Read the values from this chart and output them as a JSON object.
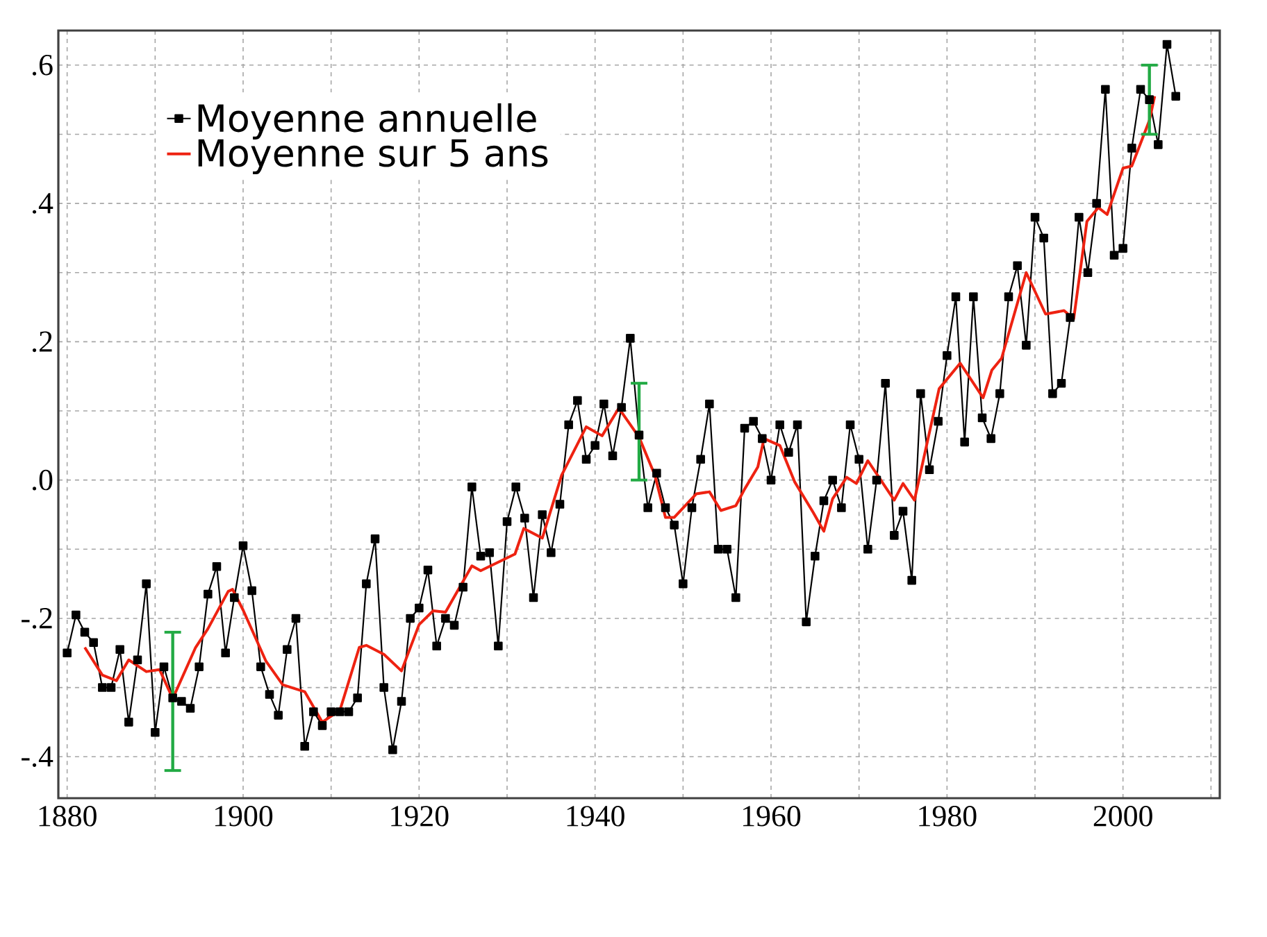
{
  "chart_data": {
    "type": "line",
    "xlim": [
      1879,
      2011
    ],
    "ylim": [
      -0.46,
      0.65
    ],
    "xticks": [
      1880,
      {
        "value": 1890,
        "label": null
      },
      1900,
      {
        "value": 1910,
        "label": null
      },
      1920,
      {
        "value": 1930,
        "label": null
      },
      1940,
      {
        "value": 1950,
        "label": null
      },
      1960,
      {
        "value": 1970,
        "label": null
      },
      1980,
      {
        "value": 1990,
        "label": null
      },
      2000,
      {
        "value": 2010,
        "label": null
      }
    ],
    "yticks": [
      {
        "value": -0.4,
        "label": "-.4"
      },
      {
        "value": -0.3,
        "label": null
      },
      {
        "value": -0.2,
        "label": "-.2"
      },
      {
        "value": -0.1,
        "label": null
      },
      {
        "value": 0,
        "label": ".0"
      },
      {
        "value": 0.1,
        "label": null
      },
      {
        "value": 0.2,
        "label": ".2"
      },
      {
        "value": 0.3,
        "label": null
      },
      {
        "value": 0.4,
        "label": ".4"
      },
      {
        "value": 0.5,
        "label": null
      },
      {
        "value": 0.6,
        "label": ".6"
      }
    ],
    "grid": true,
    "legend": "top left",
    "series": [
      {
        "name": "Moyenne annuelle",
        "color": "#000000",
        "marker": "square",
        "x": [
          1880,
          1881,
          1882,
          1883,
          1884,
          1885,
          1886,
          1887,
          1888,
          1889,
          1890,
          1891,
          1892,
          1893,
          1894,
          1895,
          1896,
          1897,
          1898,
          1899,
          1900,
          1901,
          1902,
          1903,
          1904,
          1905,
          1906,
          1907,
          1908,
          1909,
          1910,
          1911,
          1912,
          1913,
          1914,
          1915,
          1916,
          1917,
          1918,
          1919,
          1920,
          1921,
          1922,
          1923,
          1924,
          1925,
          1926,
          1927,
          1928,
          1929,
          1930,
          1931,
          1932,
          1933,
          1934,
          1935,
          1936,
          1937,
          1938,
          1939,
          1940,
          1941,
          1942,
          1943,
          1944,
          1945,
          1946,
          1947,
          1948,
          1949,
          1950,
          1951,
          1952,
          1953,
          1954,
          1955,
          1956,
          1957,
          1958,
          1959,
          1960,
          1961,
          1962,
          1963,
          1964,
          1965,
          1966,
          1967,
          1968,
          1969,
          1970,
          1971,
          1972,
          1973,
          1974,
          1975,
          1976,
          1977,
          1978,
          1979,
          1980,
          1981,
          1982,
          1983,
          1984,
          1985,
          1986,
          1987,
          1988,
          1989,
          1990,
          1991,
          1992,
          1993,
          1994,
          1995,
          1996,
          1997,
          1998,
          1999,
          2000,
          2001,
          2002,
          2003,
          2004,
          2005,
          2006
        ],
        "values": [
          -0.25,
          -0.195,
          -0.22,
          -0.235,
          -0.3,
          -0.3,
          -0.245,
          -0.35,
          -0.26,
          -0.15,
          -0.365,
          -0.27,
          -0.315,
          -0.32,
          -0.33,
          -0.27,
          -0.165,
          -0.125,
          -0.25,
          -0.17,
          -0.095,
          -0.16,
          -0.27,
          -0.31,
          -0.34,
          -0.245,
          -0.2,
          -0.385,
          -0.335,
          -0.355,
          -0.335,
          -0.335,
          -0.335,
          -0.315,
          -0.15,
          -0.085,
          -0.3,
          -0.39,
          -0.32,
          -0.2,
          -0.185,
          -0.13,
          -0.24,
          -0.2,
          -0.21,
          -0.155,
          -0.01,
          -0.11,
          -0.105,
          -0.24,
          -0.06,
          -0.01,
          -0.055,
          -0.17,
          -0.05,
          -0.105,
          -0.035,
          0.08,
          0.115,
          0.03,
          0.05,
          0.11,
          0.035,
          0.105,
          0.205,
          0.065,
          -0.04,
          0.01,
          -0.04,
          -0.065,
          -0.15,
          -0.04,
          0.03,
          0.11,
          -0.1,
          -0.1,
          -0.17,
          0.075,
          0.085,
          0.06,
          0.0,
          0.08,
          0.04,
          0.08,
          -0.205,
          -0.11,
          -0.03,
          0.0,
          -0.04,
          0.08,
          0.03,
          -0.1,
          0.0,
          0.14,
          -0.08,
          -0.045,
          -0.145,
          0.125,
          0.015,
          0.085,
          0.18,
          0.265,
          0.055,
          0.265,
          0.09,
          0.06,
          0.125,
          0.265,
          0.31,
          0.195,
          0.38,
          0.35,
          0.125,
          0.14,
          0.235,
          0.38,
          0.3,
          0.4,
          0.565,
          0.325,
          0.335,
          0.48,
          0.565,
          0.55,
          0.485,
          0.63,
          0.555
        ]
      },
      {
        "name": "Moyenne sur 5 ans",
        "color": "#ee2211",
        "marker": "none",
        "x": [
          1882,
          1884,
          1885.6,
          1887,
          1889,
          1890.5,
          1892,
          1894.6,
          1896,
          1898.3,
          1898.8,
          1900,
          1902.6,
          1904.5,
          1907,
          1909,
          1911,
          1913.2,
          1914,
          1916,
          1918,
          1920,
          1921.6,
          1923,
          1926,
          1927,
          1930.9,
          1931.9,
          1934,
          1936.2,
          1939,
          1940.8,
          1942.7,
          1945,
          1946.8,
          1948,
          1949,
          1951.5,
          1953,
          1954.3,
          1956,
          1957,
          1958.5,
          1959.2,
          1961,
          1962.7,
          1964.8,
          1966,
          1967,
          1968.6,
          1969.7,
          1971,
          1974,
          1975,
          1976.3,
          1979.1,
          1981.5,
          1984.1,
          1985.1,
          1986.2,
          1989,
          1991.2,
          1993.3,
          1994.4,
          1995.9,
          1997.2,
          1998.2,
          2000,
          2001,
          2003,
          2003.6
        ],
        "values": [
          -0.242,
          -0.282,
          -0.29,
          -0.26,
          -0.277,
          -0.274,
          -0.316,
          -0.242,
          -0.215,
          -0.161,
          -0.158,
          -0.188,
          -0.262,
          -0.296,
          -0.306,
          -0.35,
          -0.333,
          -0.242,
          -0.239,
          -0.252,
          -0.276,
          -0.209,
          -0.189,
          -0.191,
          -0.124,
          -0.131,
          -0.107,
          -0.07,
          -0.084,
          0.007,
          0.077,
          0.064,
          0.104,
          0.062,
          0.007,
          -0.054,
          -0.054,
          -0.02,
          -0.017,
          -0.044,
          -0.037,
          -0.013,
          0.019,
          0.06,
          0.05,
          -0.003,
          -0.047,
          -0.074,
          -0.027,
          0.004,
          -0.005,
          0.028,
          -0.029,
          -0.005,
          -0.029,
          0.132,
          0.169,
          0.119,
          0.159,
          0.176,
          0.3,
          0.24,
          0.245,
          0.233,
          0.374,
          0.394,
          0.384,
          0.451,
          0.454,
          0.52,
          0.555
        ],
        "errors": [
          null,
          null,
          null,
          null,
          null,
          null,
          [
            -0.42,
            -0.22
          ],
          null,
          null,
          null,
          null,
          null,
          null,
          null,
          null,
          null,
          null,
          null,
          null,
          null,
          null,
          null,
          null,
          null,
          null,
          null,
          null,
          null,
          null,
          null,
          null,
          null,
          null,
          [
            0.0,
            0.14
          ],
          null,
          null,
          null,
          null,
          null,
          null,
          null,
          null,
          null,
          null,
          null,
          null,
          null,
          null,
          null,
          null,
          null,
          null,
          null,
          null,
          null,
          null,
          null,
          null,
          null,
          null,
          null,
          null,
          null,
          null,
          null,
          null,
          null,
          null,
          null,
          [
            0.5,
            0.6
          ],
          null
        ]
      }
    ]
  }
}
